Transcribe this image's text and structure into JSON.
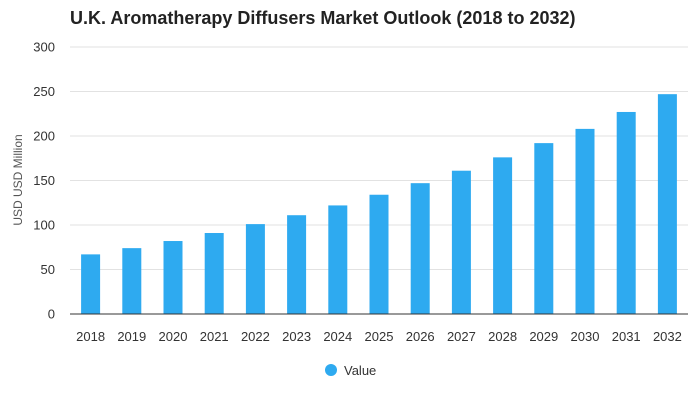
{
  "chart_data": {
    "type": "bar",
    "title": "U.K. Aromatherapy Diffusers Market Outlook (2018 to 2032)",
    "xlabel": "",
    "ylabel": "USD USD Million",
    "categories": [
      "2018",
      "2019",
      "2020",
      "2021",
      "2022",
      "2023",
      "2024",
      "2025",
      "2026",
      "2027",
      "2028",
      "2029",
      "2030",
      "2031",
      "2032"
    ],
    "series": [
      {
        "name": "Value",
        "values": [
          67,
          74,
          82,
          91,
          101,
          111,
          122,
          134,
          147,
          161,
          176,
          192,
          208,
          227,
          247
        ]
      }
    ],
    "ylim": [
      0,
      300
    ],
    "yticks": [
      0,
      50,
      100,
      150,
      200,
      250,
      300
    ],
    "grid": true,
    "legend": "bottom-center",
    "color": "#2eaaf0"
  }
}
